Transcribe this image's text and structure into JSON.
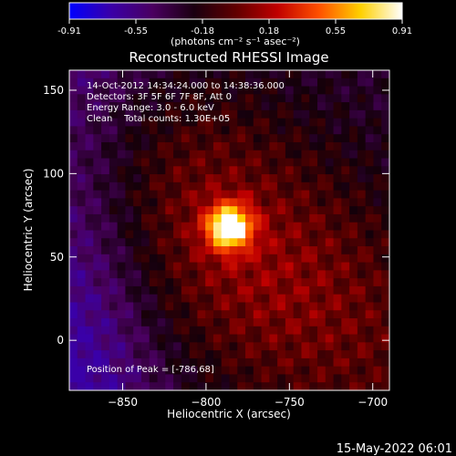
{
  "colorbar": {
    "tick_labels": [
      "-0.91",
      "-0.55",
      "-0.18",
      "0.18",
      "0.55",
      "0.91"
    ],
    "unit_label": "(photons cm⁻² s⁻¹ asec⁻²)",
    "colors": [
      "#0000ff",
      "#3a00a8",
      "#4a0060",
      "#1a0010",
      "#600000",
      "#c00000",
      "#ff5000",
      "#ffd000",
      "#ffffff"
    ]
  },
  "chart_data": {
    "type": "heatmap",
    "title": "Reconstructed RHESSI Image",
    "xlabel": "Heliocentric X (arcsec)",
    "ylabel": "Heliocentric Y (arcsec)",
    "xlim": [
      -882,
      -690
    ],
    "ylim": [
      -30,
      162
    ],
    "x_ticks": [
      -850,
      -800,
      -750,
      -700
    ],
    "y_ticks": [
      0,
      50,
      100,
      150
    ],
    "peak_position": [
      -786,
      68
    ],
    "info_lines": [
      "14-Oct-2012 14:34:24.000 to 14:38:36.000",
      "Detectors: 3F 5F 6F 7F 8F, Att 0",
      "Energy Range: 3.0 - 6.0 keV",
      "Clean    Total counts: 1.30E+05"
    ],
    "peak_label": "Position of Peak = [-786,68]"
  },
  "footer": {
    "date_stamp": "15-May-2022 06:01"
  }
}
